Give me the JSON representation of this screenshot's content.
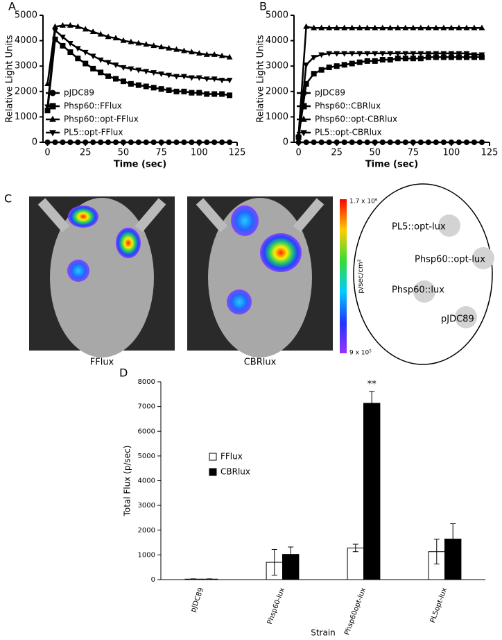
{
  "chart_data": [
    {
      "type": "line",
      "panel_label": "A",
      "x_label": "Time (sec)",
      "y_label": "Relative Light Units",
      "x": [
        0,
        5,
        10,
        15,
        20,
        25,
        30,
        35,
        40,
        45,
        50,
        55,
        60,
        65,
        70,
        75,
        80,
        85,
        90,
        95,
        100,
        105,
        110,
        115,
        120
      ],
      "xlim": [
        -3,
        125
      ],
      "xticks": [
        0,
        25,
        50,
        75,
        100,
        125
      ],
      "ylim": [
        0,
        5000
      ],
      "yticks": [
        0,
        1000,
        2000,
        3000,
        4000,
        5000
      ],
      "grid": false,
      "legend_position": "lower left",
      "series": [
        {
          "name": "pJDC89",
          "color": "#000000",
          "marker": "circle",
          "values": [
            0,
            0,
            0,
            0,
            0,
            0,
            0,
            0,
            0,
            0,
            0,
            0,
            0,
            0,
            0,
            0,
            0,
            0,
            0,
            0,
            0,
            0,
            0,
            0,
            0
          ]
        },
        {
          "name": "Phsp60::FFlux",
          "color": "#000000",
          "marker": "square",
          "values": [
            1250,
            4050,
            3800,
            3550,
            3300,
            3100,
            2900,
            2750,
            2600,
            2500,
            2400,
            2300,
            2250,
            2200,
            2150,
            2100,
            2050,
            2000,
            2000,
            1950,
            1950,
            1900,
            1900,
            1900,
            1850
          ]
        },
        {
          "name": "Phsp60::opt-FFlux",
          "color": "#000000",
          "marker": "triangle-up",
          "values": [
            2300,
            4550,
            4600,
            4600,
            4550,
            4450,
            4350,
            4250,
            4150,
            4100,
            4000,
            3950,
            3900,
            3850,
            3800,
            3750,
            3700,
            3650,
            3600,
            3550,
            3500,
            3450,
            3450,
            3400,
            3350
          ]
        },
        {
          "name": "PL5::opt-FFlux",
          "color": "#000000",
          "marker": "triangle-down",
          "values": [
            1400,
            4400,
            4150,
            3900,
            3700,
            3550,
            3400,
            3250,
            3150,
            3050,
            2950,
            2900,
            2850,
            2800,
            2750,
            2700,
            2650,
            2600,
            2600,
            2550,
            2550,
            2500,
            2500,
            2450,
            2450
          ]
        }
      ]
    },
    {
      "type": "line",
      "panel_label": "B",
      "x_label": "Time (sec)",
      "y_label": "Relative Light Units",
      "x": [
        0,
        5,
        10,
        15,
        20,
        25,
        30,
        35,
        40,
        45,
        50,
        55,
        60,
        65,
        70,
        75,
        80,
        85,
        90,
        95,
        100,
        105,
        110,
        115,
        120
      ],
      "xlim": [
        -3,
        125
      ],
      "xticks": [
        0,
        25,
        50,
        75,
        100,
        125
      ],
      "ylim": [
        0,
        5000
      ],
      "yticks": [
        0,
        1000,
        2000,
        3000,
        4000,
        5000
      ],
      "grid": false,
      "legend_position": "lower left",
      "series": [
        {
          "name": "pJDC89",
          "color": "#000000",
          "marker": "circle",
          "values": [
            0,
            0,
            0,
            0,
            0,
            0,
            0,
            0,
            0,
            0,
            0,
            0,
            0,
            0,
            0,
            0,
            0,
            0,
            0,
            0,
            0,
            0,
            0,
            0,
            0
          ]
        },
        {
          "name": "Phsp60::CBRlux",
          "color": "#000000",
          "marker": "square",
          "values": [
            200,
            2300,
            2700,
            2850,
            2950,
            3000,
            3050,
            3100,
            3150,
            3200,
            3200,
            3250,
            3250,
            3300,
            3300,
            3300,
            3300,
            3350,
            3350,
            3350,
            3350,
            3350,
            3350,
            3350,
            3350
          ]
        },
        {
          "name": "Phsp60::opt-CBRlux",
          "color": "#000000",
          "marker": "triangle-up",
          "values": [
            300,
            4550,
            4500,
            4500,
            4500,
            4500,
            4500,
            4500,
            4500,
            4500,
            4500,
            4500,
            4500,
            4500,
            4500,
            4500,
            4500,
            4500,
            4500,
            4500,
            4500,
            4500,
            4500,
            4500,
            4500
          ]
        },
        {
          "name": "PL5::opt-CBRlux",
          "color": "#000000",
          "marker": "triangle-down",
          "values": [
            150,
            3050,
            3350,
            3450,
            3500,
            3500,
            3500,
            3500,
            3500,
            3500,
            3500,
            3500,
            3500,
            3500,
            3500,
            3500,
            3500,
            3500,
            3500,
            3500,
            3500,
            3500,
            3500,
            3450,
            3450
          ]
        }
      ]
    },
    {
      "type": "bar",
      "panel_label": "D",
      "x_label": "Strain",
      "y_label": "Total Flux (p/sec)",
      "categories": [
        "pJDC89",
        "Phsp60-lux",
        "Phsp60opt-lux",
        "PL5opt-lux"
      ],
      "ylim": [
        0,
        8000
      ],
      "yticks": [
        0,
        1000,
        2000,
        3000,
        4000,
        5000,
        6000,
        7000,
        8000
      ],
      "grid": false,
      "legend_position": "center left",
      "series": [
        {
          "name": "FFlux",
          "color": "#ffffff",
          "values": [
            20,
            700,
            1280,
            1130
          ],
          "errors": [
            10,
            520,
            150,
            500
          ]
        },
        {
          "name": "CBRlux",
          "color": "#000000",
          "values": [
            20,
            1020,
            7130,
            1640
          ],
          "errors": [
            10,
            300,
            480,
            620
          ]
        }
      ],
      "annotations": [
        {
          "text": "**",
          "x": "Phsp60opt-lux"
        }
      ]
    }
  ],
  "imaging_panel": {
    "panel_label": "C",
    "images": [
      "FFlux",
      "CBRlux"
    ],
    "colorbar": {
      "max_label": "1.7 x 10⁶",
      "min_label": "9 x 10⁵",
      "unit": "p/sec/cm²"
    },
    "diagram_labels": [
      "PL5::opt-lux",
      "Phsp60::opt-lux",
      "Phsp60::lux",
      "pJDC89"
    ]
  }
}
